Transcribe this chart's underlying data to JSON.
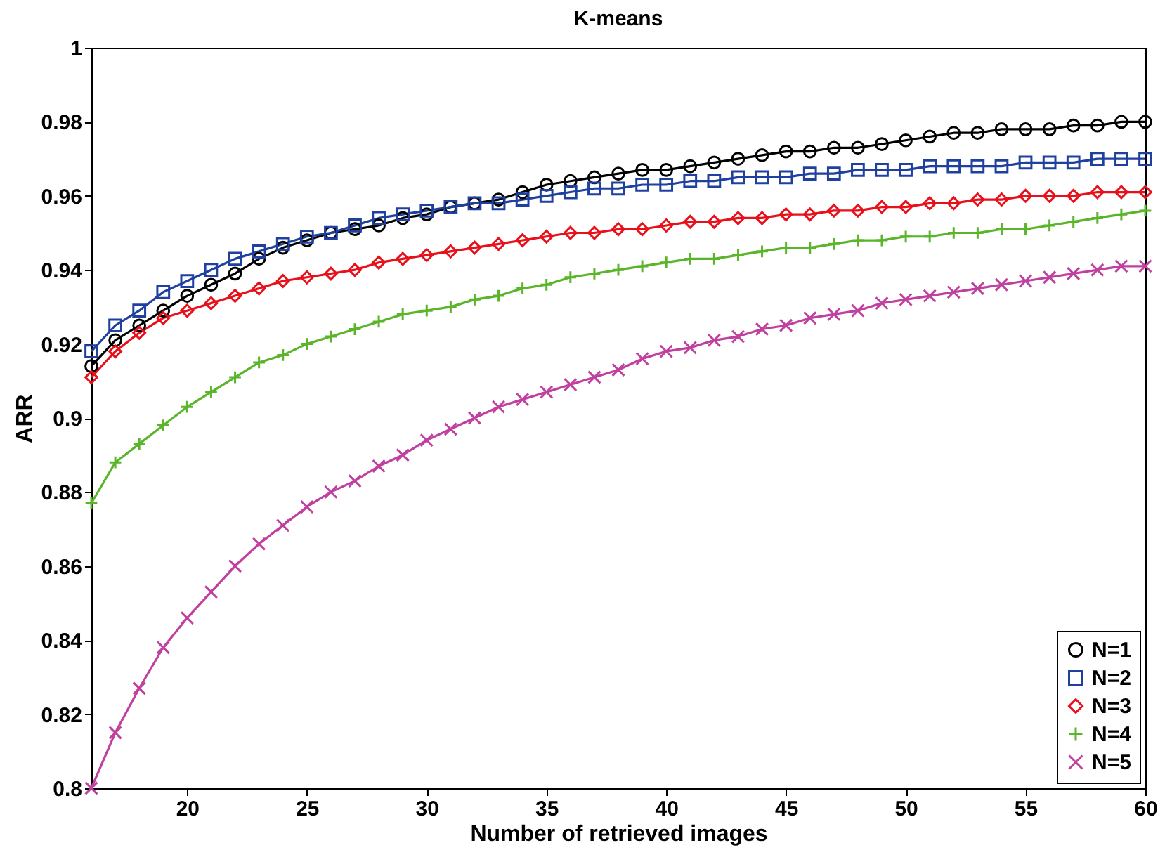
{
  "chart_data": {
    "type": "line",
    "title": "K-means",
    "xlabel": "Number of retrieved images",
    "ylabel": "ARR",
    "x": [
      16,
      17,
      18,
      19,
      20,
      21,
      22,
      23,
      24,
      25,
      26,
      27,
      28,
      29,
      30,
      31,
      32,
      33,
      34,
      35,
      36,
      37,
      38,
      39,
      40,
      41,
      42,
      43,
      44,
      45,
      46,
      47,
      48,
      49,
      50,
      51,
      52,
      53,
      54,
      55,
      56,
      57,
      58,
      59,
      60
    ],
    "xlim": [
      16,
      60
    ],
    "xticks": [
      20,
      25,
      30,
      35,
      40,
      45,
      50,
      55,
      60
    ],
    "ylim": [
      0.8,
      1
    ],
    "yticks": [
      0.8,
      0.82,
      0.84,
      0.86,
      0.88,
      0.9,
      0.92,
      0.94,
      0.96,
      0.98,
      1
    ],
    "grid": false,
    "legend": "bottom right",
    "series": [
      {
        "name": "N=1",
        "color": "#000000",
        "marker": "circle",
        "values": [
          0.914,
          0.921,
          0.925,
          0.929,
          0.933,
          0.936,
          0.939,
          0.943,
          0.946,
          0.948,
          0.95,
          0.951,
          0.952,
          0.954,
          0.955,
          0.957,
          0.958,
          0.959,
          0.961,
          0.963,
          0.964,
          0.965,
          0.966,
          0.967,
          0.967,
          0.968,
          0.969,
          0.97,
          0.971,
          0.972,
          0.972,
          0.973,
          0.973,
          0.974,
          0.975,
          0.976,
          0.977,
          0.977,
          0.978,
          0.978,
          0.978,
          0.979,
          0.979,
          0.98,
          0.98
        ]
      },
      {
        "name": "N=2",
        "color": "#2040a0",
        "marker": "square",
        "values": [
          0.918,
          0.925,
          0.929,
          0.934,
          0.937,
          0.94,
          0.943,
          0.945,
          0.947,
          0.949,
          0.95,
          0.952,
          0.954,
          0.955,
          0.956,
          0.957,
          0.958,
          0.958,
          0.959,
          0.96,
          0.961,
          0.962,
          0.962,
          0.963,
          0.963,
          0.964,
          0.964,
          0.965,
          0.965,
          0.965,
          0.966,
          0.966,
          0.967,
          0.967,
          0.967,
          0.968,
          0.968,
          0.968,
          0.968,
          0.969,
          0.969,
          0.969,
          0.97,
          0.97,
          0.97
        ]
      },
      {
        "name": "N=3",
        "color": "#e8101a",
        "marker": "diamond",
        "values": [
          0.911,
          0.918,
          0.923,
          0.927,
          0.929,
          0.931,
          0.933,
          0.935,
          0.937,
          0.938,
          0.939,
          0.94,
          0.942,
          0.943,
          0.944,
          0.945,
          0.946,
          0.947,
          0.948,
          0.949,
          0.95,
          0.95,
          0.951,
          0.951,
          0.952,
          0.953,
          0.953,
          0.954,
          0.954,
          0.955,
          0.955,
          0.956,
          0.956,
          0.957,
          0.957,
          0.958,
          0.958,
          0.959,
          0.959,
          0.96,
          0.96,
          0.96,
          0.961,
          0.961,
          0.961
        ]
      },
      {
        "name": "N=4",
        "color": "#5ab52a",
        "marker": "cross",
        "values": [
          0.877,
          0.888,
          0.893,
          0.898,
          0.903,
          0.907,
          0.911,
          0.915,
          0.917,
          0.92,
          0.922,
          0.924,
          0.926,
          0.928,
          0.929,
          0.93,
          0.932,
          0.933,
          0.935,
          0.936,
          0.938,
          0.939,
          0.94,
          0.941,
          0.942,
          0.943,
          0.943,
          0.944,
          0.945,
          0.946,
          0.946,
          0.947,
          0.948,
          0.948,
          0.949,
          0.949,
          0.95,
          0.95,
          0.951,
          0.951,
          0.952,
          0.953,
          0.954,
          0.955,
          0.956
        ]
      },
      {
        "name": "N=5",
        "color": "#c040a0",
        "marker": "x",
        "values": [
          0.8,
          0.815,
          0.827,
          0.838,
          0.846,
          0.853,
          0.86,
          0.866,
          0.871,
          0.876,
          0.88,
          0.883,
          0.887,
          0.89,
          0.894,
          0.897,
          0.9,
          0.903,
          0.905,
          0.907,
          0.909,
          0.911,
          0.913,
          0.916,
          0.918,
          0.919,
          0.921,
          0.922,
          0.924,
          0.925,
          0.927,
          0.928,
          0.929,
          0.931,
          0.932,
          0.933,
          0.934,
          0.935,
          0.936,
          0.937,
          0.938,
          0.939,
          0.94,
          0.941,
          0.941
        ]
      }
    ]
  }
}
